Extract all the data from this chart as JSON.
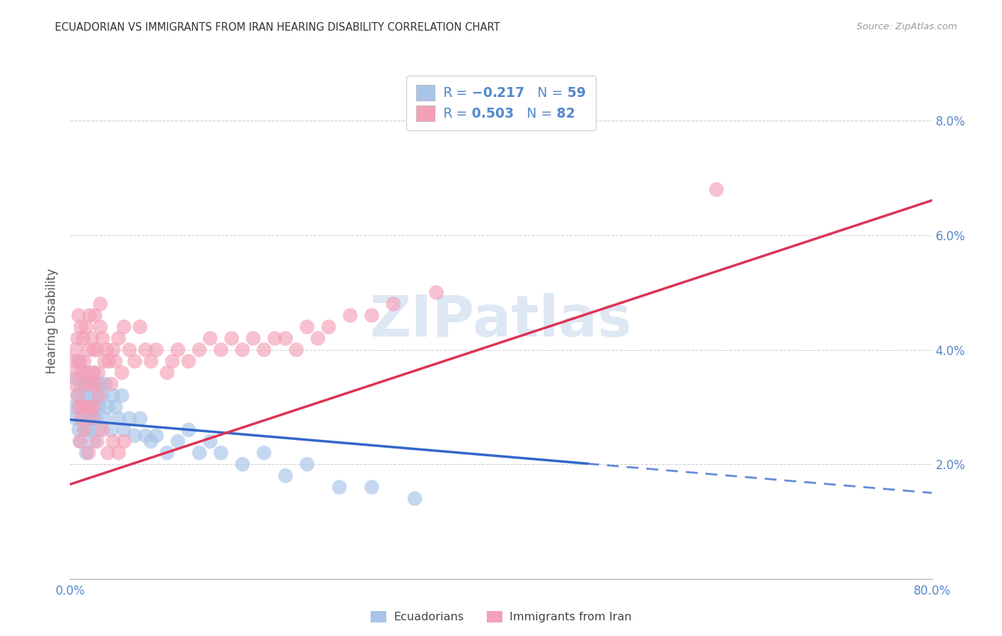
{
  "title": "ECUADORIAN VS IMMIGRANTS FROM IRAN HEARING DISABILITY CORRELATION CHART",
  "source": "Source: ZipAtlas.com",
  "ylabel": "Hearing Disability",
  "ylim": [
    0.0,
    0.09
  ],
  "xlim": [
    0.0,
    0.8
  ],
  "series": [
    {
      "label": "Ecuadorians",
      "R": -0.217,
      "N": 59,
      "color": "#a8c4e8",
      "line_color": "#3366cc",
      "line_solid_end": 0.48,
      "intercept": 0.0278,
      "slope": -0.016
    },
    {
      "label": "Immigrants from Iran",
      "R": 0.503,
      "N": 82,
      "color": "#f4a0b8",
      "line_color": "#dd3355",
      "intercept": 0.0165,
      "slope": 0.062
    }
  ],
  "ecuadorian_x": [
    0.003,
    0.005,
    0.006,
    0.007,
    0.008,
    0.008,
    0.009,
    0.01,
    0.01,
    0.011,
    0.012,
    0.013,
    0.014,
    0.015,
    0.015,
    0.016,
    0.017,
    0.018,
    0.018,
    0.019,
    0.02,
    0.021,
    0.022,
    0.022,
    0.023,
    0.024,
    0.025,
    0.026,
    0.027,
    0.028,
    0.03,
    0.032,
    0.033,
    0.035,
    0.038,
    0.04,
    0.042,
    0.045,
    0.048,
    0.05,
    0.055,
    0.06,
    0.065,
    0.07,
    0.075,
    0.08,
    0.09,
    0.1,
    0.11,
    0.12,
    0.13,
    0.14,
    0.16,
    0.18,
    0.2,
    0.22,
    0.25,
    0.28,
    0.32
  ],
  "ecuadorian_y": [
    0.03,
    0.028,
    0.035,
    0.032,
    0.026,
    0.038,
    0.03,
    0.034,
    0.024,
    0.028,
    0.032,
    0.036,
    0.026,
    0.03,
    0.022,
    0.034,
    0.028,
    0.026,
    0.032,
    0.03,
    0.034,
    0.028,
    0.036,
    0.024,
    0.03,
    0.028,
    0.032,
    0.026,
    0.03,
    0.034,
    0.032,
    0.028,
    0.034,
    0.03,
    0.026,
    0.032,
    0.03,
    0.028,
    0.032,
    0.026,
    0.028,
    0.025,
    0.028,
    0.025,
    0.024,
    0.025,
    0.022,
    0.024,
    0.026,
    0.022,
    0.024,
    0.022,
    0.02,
    0.022,
    0.018,
    0.02,
    0.016,
    0.016,
    0.014
  ],
  "iran_x": [
    0.003,
    0.004,
    0.005,
    0.006,
    0.007,
    0.007,
    0.008,
    0.008,
    0.009,
    0.01,
    0.01,
    0.011,
    0.012,
    0.012,
    0.013,
    0.014,
    0.015,
    0.015,
    0.016,
    0.017,
    0.018,
    0.018,
    0.019,
    0.02,
    0.021,
    0.022,
    0.022,
    0.023,
    0.024,
    0.025,
    0.026,
    0.027,
    0.028,
    0.03,
    0.032,
    0.034,
    0.036,
    0.038,
    0.04,
    0.042,
    0.045,
    0.048,
    0.05,
    0.055,
    0.06,
    0.065,
    0.07,
    0.075,
    0.08,
    0.09,
    0.095,
    0.1,
    0.11,
    0.12,
    0.13,
    0.14,
    0.15,
    0.16,
    0.17,
    0.18,
    0.19,
    0.2,
    0.21,
    0.22,
    0.23,
    0.24,
    0.26,
    0.28,
    0.3,
    0.34,
    0.009,
    0.013,
    0.017,
    0.021,
    0.025,
    0.03,
    0.035,
    0.04,
    0.045,
    0.05,
    0.6,
    0.028
  ],
  "iran_y": [
    0.038,
    0.034,
    0.04,
    0.036,
    0.032,
    0.042,
    0.03,
    0.046,
    0.038,
    0.028,
    0.044,
    0.036,
    0.042,
    0.03,
    0.038,
    0.034,
    0.044,
    0.03,
    0.036,
    0.04,
    0.046,
    0.03,
    0.034,
    0.042,
    0.036,
    0.04,
    0.03,
    0.046,
    0.034,
    0.04,
    0.036,
    0.032,
    0.044,
    0.042,
    0.038,
    0.04,
    0.038,
    0.034,
    0.04,
    0.038,
    0.042,
    0.036,
    0.044,
    0.04,
    0.038,
    0.044,
    0.04,
    0.038,
    0.04,
    0.036,
    0.038,
    0.04,
    0.038,
    0.04,
    0.042,
    0.04,
    0.042,
    0.04,
    0.042,
    0.04,
    0.042,
    0.042,
    0.04,
    0.044,
    0.042,
    0.044,
    0.046,
    0.046,
    0.048,
    0.05,
    0.024,
    0.026,
    0.022,
    0.028,
    0.024,
    0.026,
    0.022,
    0.024,
    0.022,
    0.024,
    0.068,
    0.048
  ],
  "watermark_text": "ZIPatlas",
  "watermark_color": "#c8d8ee",
  "background_color": "#ffffff",
  "grid_color": "#cccccc",
  "title_color": "#333333",
  "tick_color": "#5588cc",
  "ylabel_color": "#555555"
}
